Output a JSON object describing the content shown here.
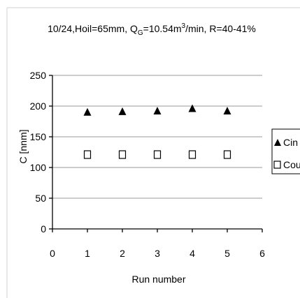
{
  "chart_data": {
    "type": "scatter",
    "title_parts": {
      "prefix": "10/24,Hoil=65mm, Q",
      "sub_g": "G",
      "mid": "=10.54m",
      "sup_3": "3",
      "suffix": "/min, R=40-41%"
    },
    "xlabel": "Run number",
    "ylabel": "C [nnm]",
    "xlim": [
      0,
      6
    ],
    "ylim": [
      0,
      250
    ],
    "x_ticks": [
      "0",
      "1",
      "2",
      "3",
      "4",
      "5",
      "6"
    ],
    "y_ticks": [
      "0",
      "50",
      "100",
      "150",
      "200",
      "250"
    ],
    "grid": "horizontal",
    "legend_position": "right",
    "series": [
      {
        "name": "Cin",
        "marker": "filled-triangle",
        "color": "#000000",
        "x": [
          1,
          2,
          3,
          4,
          5
        ],
        "y": [
          190,
          191,
          192,
          196,
          192
        ]
      },
      {
        "name": "Cou",
        "marker": "open-square",
        "color": "#000000",
        "x": [
          1,
          2,
          3,
          4,
          5
        ],
        "y": [
          121,
          121,
          121,
          121,
          121
        ]
      }
    ]
  }
}
